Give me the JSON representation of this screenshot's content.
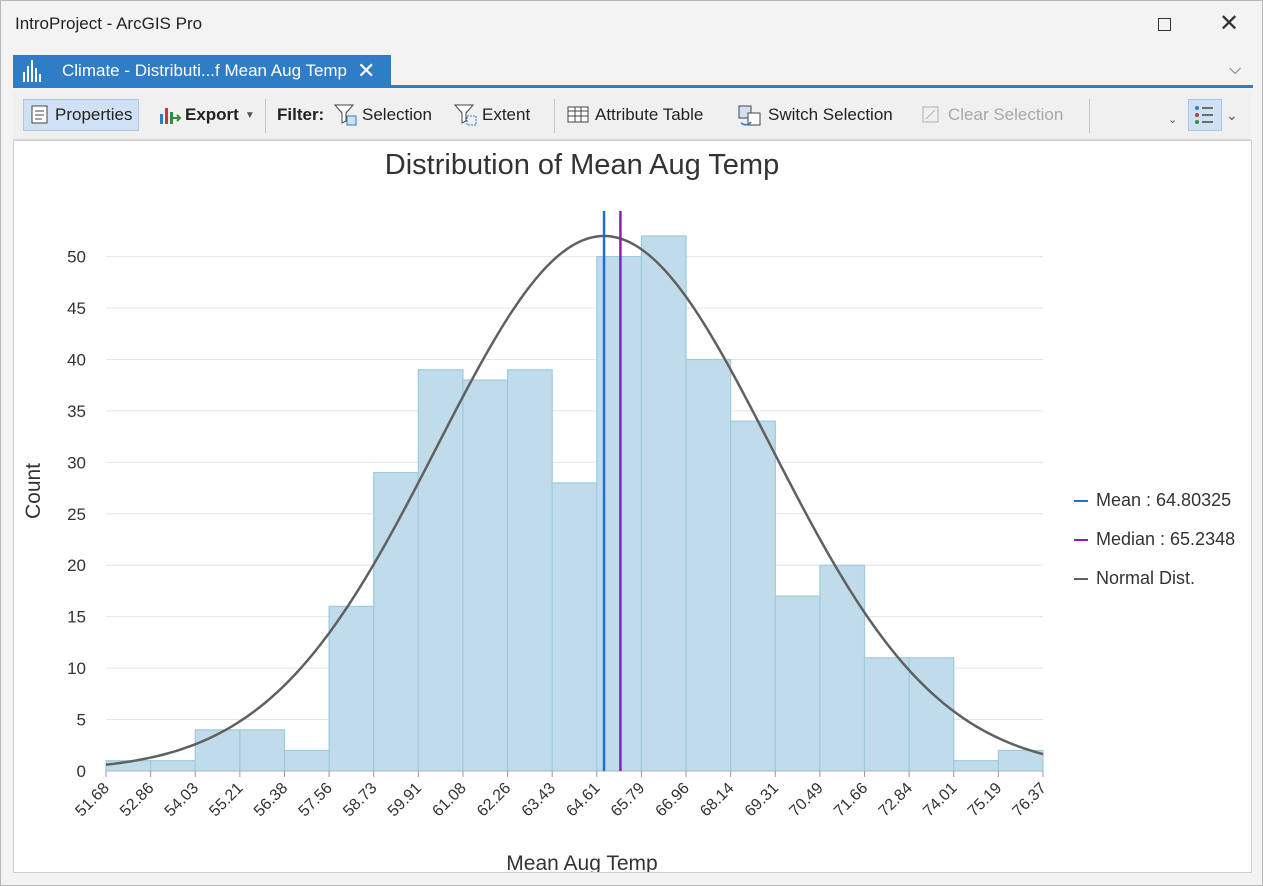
{
  "window": {
    "title": "IntroProject - ArcGIS Pro",
    "maximize_icon": "maximize-icon",
    "close_icon": "close-icon"
  },
  "tab": {
    "label": "Climate - Distributi...f Mean Aug Temp",
    "icon": "histogram-chart-icon",
    "accent_color": "#2e7dc6"
  },
  "toolbar": {
    "properties_label": "Properties",
    "export_label": "Export",
    "filter_label": "Filter:",
    "selection_label": "Selection",
    "extent_label": "Extent",
    "attribute_table_label": "Attribute Table",
    "switch_selection_label": "Switch Selection",
    "clear_selection_label": "Clear Selection"
  },
  "chart_data": {
    "type": "bar",
    "title": "Distribution of Mean Aug Temp",
    "xlabel": "Mean Aug Temp",
    "ylabel": "Count",
    "bin_edges": [
      51.68,
      52.86,
      54.03,
      55.21,
      56.38,
      57.56,
      58.73,
      59.91,
      61.08,
      62.26,
      63.43,
      64.61,
      65.79,
      66.96,
      68.14,
      69.31,
      70.49,
      71.66,
      72.84,
      74.01,
      75.19,
      76.37
    ],
    "x_tick_labels": [
      "51.68",
      "52.86",
      "54.03",
      "55.21",
      "56.38",
      "57.56",
      "58.73",
      "59.91",
      "61.08",
      "62.26",
      "63.43",
      "64.61",
      "65.79",
      "66.96",
      "68.14",
      "69.31",
      "70.49",
      "71.66",
      "72.84",
      "74.01",
      "75.19",
      "76.37"
    ],
    "values": [
      1,
      1,
      4,
      4,
      2,
      16,
      29,
      39,
      38,
      39,
      28,
      50,
      52,
      40,
      34,
      17,
      20,
      11,
      11,
      1,
      2
    ],
    "ylim": [
      0,
      52
    ],
    "yticks": [
      0,
      5,
      10,
      15,
      20,
      25,
      30,
      35,
      40,
      45,
      50
    ],
    "grid": true,
    "bar_color": "#c0dcea",
    "bar_edge_color": "#9ccae0",
    "mean": 64.80325,
    "median": 65.2348,
    "normal_sd": 4.4,
    "normal_peak": 52,
    "mean_color": "#1f6fd0",
    "median_color": "#8a1fb5",
    "normal_color": "#606060",
    "legend_position": "right",
    "legend": [
      {
        "label": "Mean : 64.80325",
        "color": "#1f6fd0"
      },
      {
        "label": "Median : 65.2348",
        "color": "#8a1fb5"
      },
      {
        "label": "Normal Dist.",
        "color": "#606060"
      }
    ]
  }
}
